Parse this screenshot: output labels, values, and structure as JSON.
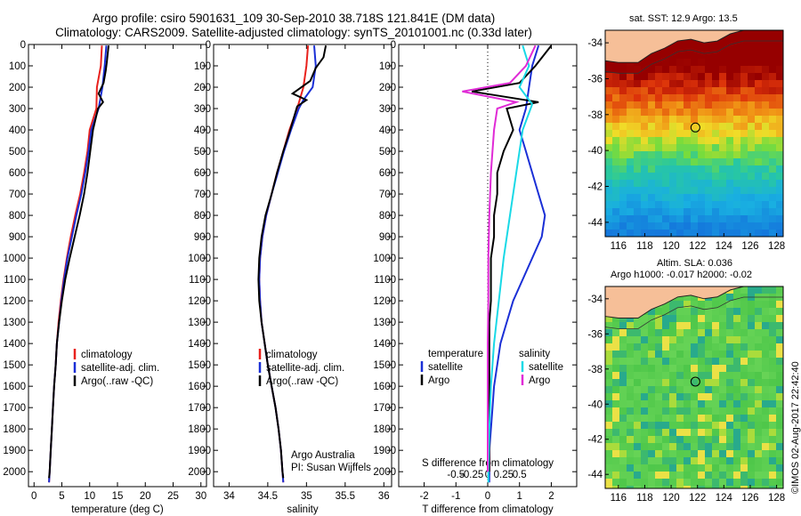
{
  "header": {
    "line1": "Argo profile: csiro 5901631_109 30-Sep-2010 38.718S 121.841E (DM data)",
    "line2": "Climatology: CARS2009. Satellite-adjusted climatology: synTS_20101001.nc (0.33d later)"
  },
  "stamp": "©IMOS 02-Aug-2017 22:42:40",
  "colors": {
    "climatology": "#e8211d",
    "satellite": "#1a2fd6",
    "argo": "#000000",
    "sal_satellite": "#19d9e6",
    "sal_argo": "#e02bd6",
    "land": "#f6bf98"
  },
  "chart_data": [
    {
      "type": "line",
      "id": "temperature",
      "xlabel": "temperature (deg C)",
      "xlim": [
        -1,
        31
      ],
      "ylim": [
        2070,
        0
      ],
      "y_reversed": true,
      "xticks": [
        0,
        5,
        10,
        15,
        20,
        25,
        30
      ],
      "yticks": [
        0,
        100,
        200,
        300,
        400,
        500,
        600,
        700,
        800,
        900,
        1000,
        1100,
        1200,
        1300,
        1400,
        1500,
        1600,
        1700,
        1800,
        1900,
        2000
      ],
      "legend": [
        "climatology",
        "satellite-adj. clim.",
        "Argo(..raw -QC)"
      ],
      "series": [
        {
          "name": "climatology",
          "color_key": "climatology",
          "points": [
            [
              12.2,
              5
            ],
            [
              12.0,
              100
            ],
            [
              11.3,
              200
            ],
            [
              11.2,
              300
            ],
            [
              10.0,
              400
            ],
            [
              9.6,
              500
            ],
            [
              9.0,
              600
            ],
            [
              8.3,
              700
            ],
            [
              7.4,
              800
            ],
            [
              6.6,
              900
            ],
            [
              5.9,
              1000
            ],
            [
              5.3,
              1100
            ],
            [
              4.8,
              1200
            ],
            [
              4.4,
              1300
            ],
            [
              4.1,
              1400
            ],
            [
              3.9,
              1500
            ],
            [
              3.6,
              1600
            ],
            [
              3.4,
              1700
            ],
            [
              3.2,
              1800
            ],
            [
              3.0,
              1900
            ],
            [
              2.8,
              2000
            ],
            [
              2.7,
              2050
            ]
          ]
        },
        {
          "name": "satellite-adj. clim.",
          "color_key": "satellite",
          "points": [
            [
              13.0,
              5
            ],
            [
              12.7,
              100
            ],
            [
              12.3,
              200
            ],
            [
              11.6,
              300
            ],
            [
              10.3,
              400
            ],
            [
              9.8,
              500
            ],
            [
              9.2,
              600
            ],
            [
              8.5,
              700
            ],
            [
              7.6,
              800
            ],
            [
              6.8,
              900
            ],
            [
              6.0,
              1000
            ],
            [
              5.4,
              1100
            ],
            [
              4.9,
              1200
            ],
            [
              4.5,
              1300
            ],
            [
              4.1,
              1400
            ],
            [
              3.9,
              1500
            ],
            [
              3.6,
              1600
            ],
            [
              3.4,
              1700
            ],
            [
              3.2,
              1800
            ],
            [
              3.0,
              1900
            ],
            [
              2.8,
              2000
            ],
            [
              2.7,
              2050
            ]
          ]
        },
        {
          "name": "Argo(..raw -QC)",
          "color_key": "argo",
          "points": [
            [
              13.4,
              5
            ],
            [
              13.1,
              80
            ],
            [
              12.9,
              120
            ],
            [
              12.5,
              180
            ],
            [
              11.6,
              230
            ],
            [
              12.4,
              270
            ],
            [
              11.5,
              300
            ],
            [
              10.6,
              400
            ],
            [
              10.1,
              500
            ],
            [
              9.6,
              600
            ],
            [
              9.0,
              700
            ],
            [
              8.2,
              800
            ],
            [
              7.3,
              900
            ],
            [
              6.4,
              1000
            ],
            [
              5.6,
              1100
            ],
            [
              5.0,
              1200
            ],
            [
              4.5,
              1300
            ],
            [
              4.1,
              1400
            ],
            [
              3.9,
              1500
            ],
            [
              3.6,
              1600
            ],
            [
              3.4,
              1700
            ],
            [
              3.2,
              1800
            ],
            [
              3.0,
              1900
            ],
            [
              2.8,
              2000
            ],
            [
              2.7,
              2030
            ]
          ]
        }
      ]
    },
    {
      "type": "line",
      "id": "salinity",
      "xlabel": "salinity",
      "xlim": [
        33.8,
        36.1
      ],
      "ylim": [
        2070,
        0
      ],
      "y_reversed": true,
      "xticks": [
        34,
        34.5,
        35,
        35.5,
        36
      ],
      "yticks": [
        0,
        100,
        200,
        300,
        400,
        500,
        600,
        700,
        800,
        900,
        1000,
        1100,
        1200,
        1300,
        1400,
        1500,
        1600,
        1700,
        1800,
        1900,
        2000
      ],
      "legend": [
        "climatology",
        "satellite-adj. clim.",
        "Argo(..raw -QC)"
      ],
      "annotation": [
        "Argo Australia",
        "PI: Susan Wijffels"
      ],
      "series": [
        {
          "name": "climatology",
          "color_key": "climatology",
          "points": [
            [
              35.02,
              5
            ],
            [
              35.0,
              100
            ],
            [
              34.96,
              200
            ],
            [
              34.88,
              300
            ],
            [
              34.78,
              400
            ],
            [
              34.7,
              500
            ],
            [
              34.62,
              600
            ],
            [
              34.55,
              700
            ],
            [
              34.48,
              800
            ],
            [
              34.43,
              900
            ],
            [
              34.4,
              1000
            ],
            [
              34.39,
              1100
            ],
            [
              34.4,
              1200
            ],
            [
              34.42,
              1300
            ],
            [
              34.46,
              1400
            ],
            [
              34.5,
              1500
            ],
            [
              34.55,
              1600
            ],
            [
              34.6,
              1700
            ],
            [
              34.64,
              1800
            ],
            [
              34.67,
              1900
            ],
            [
              34.69,
              2000
            ],
            [
              34.7,
              2050
            ]
          ]
        },
        {
          "name": "satellite-adj. clim.",
          "color_key": "satellite",
          "points": [
            [
              35.1,
              5
            ],
            [
              35.12,
              100
            ],
            [
              35.08,
              200
            ],
            [
              34.96,
              260
            ],
            [
              34.9,
              300
            ],
            [
              34.8,
              400
            ],
            [
              34.71,
              500
            ],
            [
              34.63,
              600
            ],
            [
              34.55,
              700
            ],
            [
              34.48,
              800
            ],
            [
              34.43,
              900
            ],
            [
              34.4,
              1000
            ],
            [
              34.39,
              1100
            ],
            [
              34.4,
              1200
            ],
            [
              34.42,
              1300
            ],
            [
              34.46,
              1400
            ],
            [
              34.5,
              1500
            ],
            [
              34.55,
              1600
            ],
            [
              34.6,
              1700
            ],
            [
              34.64,
              1800
            ],
            [
              34.67,
              1900
            ],
            [
              34.69,
              2000
            ],
            [
              34.7,
              2050
            ]
          ]
        },
        {
          "name": "Argo(..raw -QC)",
          "color_key": "argo",
          "points": [
            [
              35.25,
              5
            ],
            [
              35.22,
              60
            ],
            [
              35.12,
              110
            ],
            [
              35.05,
              170
            ],
            [
              34.82,
              230
            ],
            [
              35.0,
              260
            ],
            [
              34.88,
              290
            ],
            [
              34.79,
              400
            ],
            [
              34.7,
              500
            ],
            [
              34.62,
              600
            ],
            [
              34.55,
              700
            ],
            [
              34.47,
              800
            ],
            [
              34.42,
              900
            ],
            [
              34.39,
              1000
            ],
            [
              34.38,
              1100
            ],
            [
              34.39,
              1200
            ],
            [
              34.42,
              1300
            ],
            [
              34.46,
              1400
            ],
            [
              34.5,
              1500
            ],
            [
              34.55,
              1600
            ],
            [
              34.6,
              1700
            ],
            [
              34.64,
              1800
            ],
            [
              34.67,
              1900
            ],
            [
              34.69,
              2000
            ],
            [
              34.7,
              2030
            ]
          ]
        }
      ]
    },
    {
      "type": "line",
      "id": "difference",
      "xlabel": "T difference from climatology",
      "xlabel_top": "S difference from climatology",
      "xlim": [
        -2.8,
        2.8
      ],
      "ylim": [
        2070,
        0
      ],
      "y_reversed": true,
      "xticks": [
        -2,
        -1,
        0,
        1,
        2
      ],
      "sticks": [
        "-0.5",
        "-0.25",
        "0",
        "0.25",
        "0.5"
      ],
      "yticks": [
        0,
        100,
        200,
        300,
        400,
        500,
        600,
        700,
        800,
        900,
        1000,
        1100,
        1200,
        1300,
        1400,
        1500,
        1600,
        1700,
        1800,
        1900,
        2000
      ],
      "legend_groups": [
        {
          "title": "temperature",
          "items": [
            "satellite",
            "Argo"
          ]
        },
        {
          "title": "salinity",
          "items": [
            "satellite",
            "Argo"
          ]
        }
      ],
      "series": [
        {
          "name": "satellite",
          "group": "temperature",
          "color_key": "satellite",
          "points": [
            [
              1.6,
              5
            ],
            [
              1.4,
              100
            ],
            [
              1.3,
              200
            ],
            [
              1.2,
              300
            ],
            [
              1.0,
              400
            ],
            [
              1.2,
              500
            ],
            [
              1.4,
              600
            ],
            [
              1.6,
              700
            ],
            [
              1.8,
              800
            ],
            [
              1.7,
              900
            ],
            [
              1.4,
              1000
            ],
            [
              1.1,
              1100
            ],
            [
              0.8,
              1200
            ],
            [
              0.6,
              1300
            ],
            [
              0.4,
              1400
            ],
            [
              0.3,
              1500
            ],
            [
              0.2,
              1600
            ],
            [
              0.15,
              1700
            ],
            [
              0.1,
              1800
            ],
            [
              0.05,
              1900
            ],
            [
              0.05,
              2000
            ],
            [
              0.05,
              2050
            ]
          ]
        },
        {
          "name": "Argo",
          "group": "temperature",
          "color_key": "argo",
          "points": [
            [
              2.0,
              5
            ],
            [
              1.5,
              100
            ],
            [
              1.0,
              180
            ],
            [
              -0.5,
              220
            ],
            [
              1.6,
              270
            ],
            [
              0.6,
              300
            ],
            [
              0.8,
              400
            ],
            [
              0.5,
              500
            ],
            [
              0.3,
              600
            ],
            [
              0.3,
              700
            ],
            [
              0.2,
              800
            ],
            [
              0.2,
              900
            ],
            [
              0.1,
              1000
            ],
            [
              0.1,
              1100
            ],
            [
              0.1,
              1200
            ],
            [
              0.05,
              1300
            ],
            [
              0.05,
              1400
            ],
            [
              0.05,
              1500
            ],
            [
              0.05,
              1600
            ],
            [
              0.05,
              1700
            ],
            [
              0.05,
              1800
            ],
            [
              0.05,
              1900
            ],
            [
              0.05,
              2000
            ]
          ]
        },
        {
          "name": "satellite",
          "group": "salinity",
          "color_key": "sal_satellite",
          "points": [
            [
              1.1,
              5
            ],
            [
              1.3,
              100
            ],
            [
              1.0,
              200
            ],
            [
              1.4,
              280
            ],
            [
              1.1,
              400
            ],
            [
              0.9,
              600
            ],
            [
              0.7,
              800
            ],
            [
              0.5,
              1000
            ],
            [
              0.35,
              1200
            ],
            [
              0.2,
              1400
            ],
            [
              0.1,
              1600
            ],
            [
              0.05,
              1800
            ],
            [
              0.02,
              2000
            ],
            [
              0.02,
              2050
            ]
          ]
        },
        {
          "name": "Argo",
          "group": "salinity",
          "color_key": "sal_argo",
          "points": [
            [
              1.5,
              5
            ],
            [
              1.2,
              100
            ],
            [
              0.7,
              180
            ],
            [
              -0.8,
              220
            ],
            [
              0.9,
              270
            ],
            [
              0.3,
              300
            ],
            [
              0.2,
              400
            ],
            [
              0.1,
              600
            ],
            [
              0.05,
              800
            ],
            [
              0.02,
              1000
            ],
            [
              0.02,
              1200
            ],
            [
              0.0,
              1400
            ],
            [
              0.0,
              1600
            ],
            [
              0.0,
              1800
            ],
            [
              0.0,
              2000
            ]
          ]
        }
      ]
    }
  ],
  "maps": [
    {
      "id": "sst_map",
      "title": "sat. SST: 12.9  Argo: 13.5",
      "xticks": [
        116,
        118,
        120,
        122,
        124,
        126,
        128
      ],
      "yticks": [
        -34,
        -36,
        -38,
        -40,
        -42,
        -44
      ],
      "lon_range": [
        115,
        128.5
      ],
      "lat_range": [
        -44.8,
        -33.3
      ],
      "argo_position": {
        "lon": 121.841,
        "lat": -38.718
      },
      "colorfield": "sst"
    },
    {
      "id": "sla_map",
      "title": "Altim. SLA: 0.036",
      "subtitle": "Argo h1000: -0.017  h2000: -0.02",
      "xticks": [
        116,
        118,
        120,
        122,
        124,
        126,
        128
      ],
      "yticks": [
        -34,
        -36,
        -38,
        -40,
        -42,
        -44
      ],
      "lon_range": [
        115,
        128.5
      ],
      "lat_range": [
        -44.8,
        -33.3
      ],
      "argo_position": {
        "lon": 121.841,
        "lat": -38.718
      },
      "colorfield": "sla"
    }
  ]
}
